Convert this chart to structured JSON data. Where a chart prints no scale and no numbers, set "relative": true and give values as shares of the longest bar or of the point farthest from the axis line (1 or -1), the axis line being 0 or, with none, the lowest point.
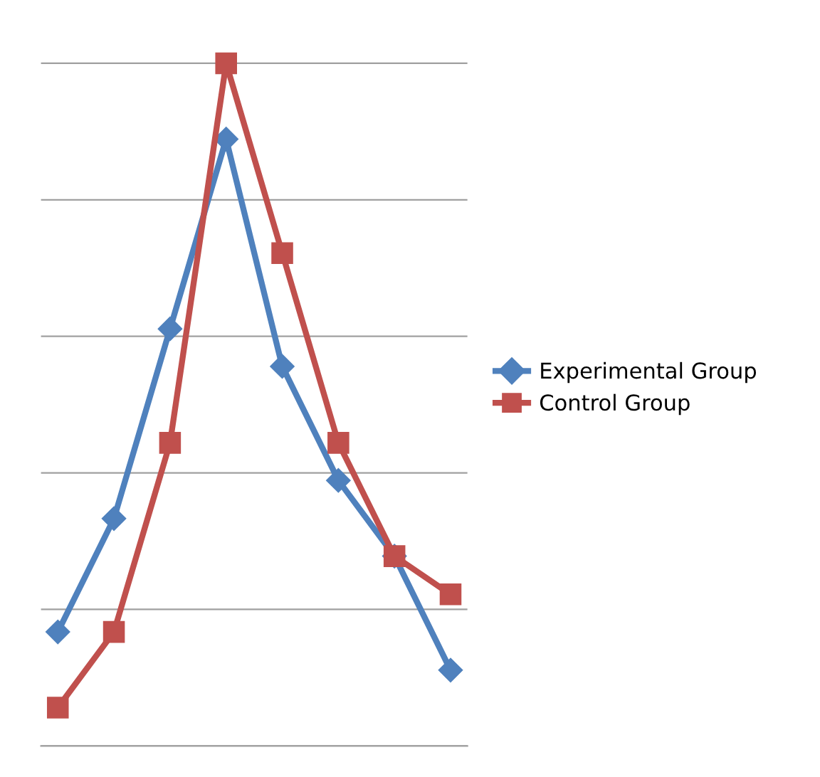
{
  "chart_data": {
    "type": "line",
    "relative": true,
    "categories": [
      null,
      null,
      null,
      null,
      null,
      null,
      null,
      null
    ],
    "series": [
      {
        "name": "Experimental Group",
        "color": "#4f81bd",
        "marker": "diamond",
        "values": [
          0.167,
          0.333,
          0.611,
          0.889,
          0.556,
          0.389,
          0.278,
          0.111
        ]
      },
      {
        "name": "Control Group",
        "color": "#c0504d",
        "marker": "square",
        "values": [
          0.056,
          0.167,
          0.444,
          1,
          0.722,
          0.444,
          0.278,
          0.222
        ]
      }
    ],
    "grid": "y",
    "legend": "right",
    "line_style": "solid"
  }
}
